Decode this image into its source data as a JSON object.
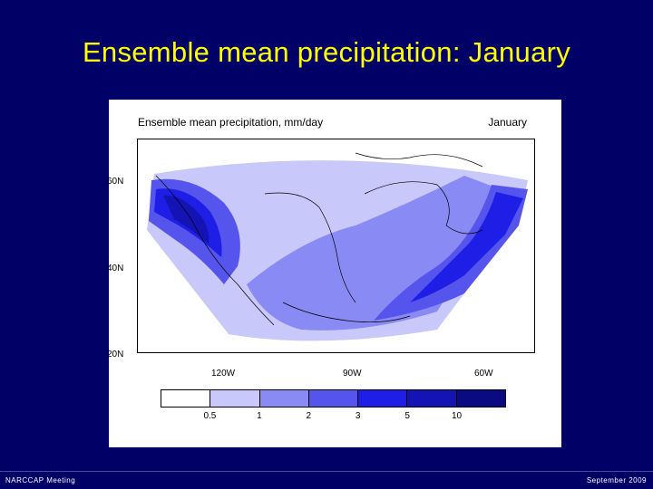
{
  "slide": {
    "title": "Ensemble mean precipitation:  January",
    "footer_left": "NARCCAP Meeting",
    "footer_right": "September 2009"
  },
  "figure": {
    "title": "Ensemble mean precipitation, mm/day",
    "month": "January",
    "lat_labels": [
      "60N",
      "40N",
      "20N"
    ],
    "lon_labels": [
      "120W",
      "90W",
      "60W"
    ]
  },
  "legend": {
    "boundaries": [
      "0.5",
      "1",
      "2",
      "3",
      "5",
      "10"
    ],
    "colors": [
      "#ffffff",
      "#c8c8fa",
      "#8a8af5",
      "#5555ee",
      "#1e1ee6",
      "#1414b4",
      "#0a0a82"
    ]
  }
}
